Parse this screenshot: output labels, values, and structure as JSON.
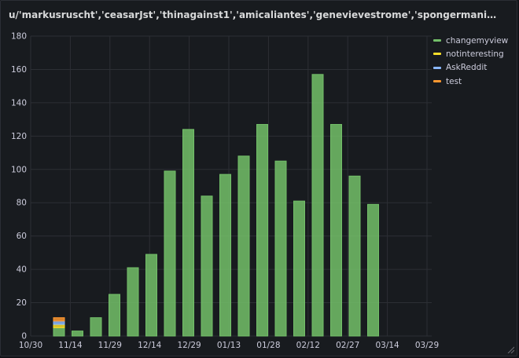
{
  "panel": {
    "title": "u/'markusruscht','ceasarJst','thinagainst1','amicaliantes','genevievestrome','spongermaniak','flippitjiBBer','oriola..."
  },
  "chart_data": {
    "type": "bar",
    "stacked": true,
    "categories": [
      "11/07",
      "11/14",
      "11/21",
      "11/28",
      "12/05",
      "12/12",
      "12/19",
      "12/26",
      "01/02",
      "01/09",
      "01/16",
      "01/23",
      "01/30",
      "02/06",
      "02/13",
      "02/20",
      "02/27",
      "03/06"
    ],
    "series": [
      {
        "name": "changemyview",
        "color": "#73bf69",
        "values": [
          5,
          3,
          11,
          25,
          41,
          49,
          99,
          124,
          84,
          97,
          108,
          127,
          105,
          81,
          157,
          127,
          96,
          79
        ]
      },
      {
        "name": "notinteresting",
        "color": "#fade2a",
        "values": [
          2,
          0,
          0,
          0,
          0,
          0,
          0,
          0,
          0,
          0,
          0,
          0,
          0,
          0,
          0,
          0,
          0,
          0
        ]
      },
      {
        "name": "AskReddit",
        "color": "#8ab8ff",
        "values": [
          2,
          0,
          0,
          0,
          0,
          0,
          0,
          0,
          0,
          0,
          0,
          0,
          0,
          0,
          0,
          0,
          0,
          0
        ]
      },
      {
        "name": "test",
        "color": "#ff9830",
        "values": [
          2,
          0,
          0,
          0,
          0,
          0,
          0,
          0,
          0,
          0,
          0,
          0,
          0,
          0,
          0,
          0,
          0,
          0
        ]
      }
    ],
    "x_ticks": [
      "10/30",
      "11/14",
      "11/29",
      "12/14",
      "12/29",
      "01/13",
      "01/28",
      "02/12",
      "02/27",
      "03/14",
      "03/29"
    ],
    "y_ticks": [
      0,
      20,
      40,
      60,
      80,
      100,
      120,
      140,
      160,
      180
    ],
    "ylim": [
      0,
      180
    ],
    "grid": true,
    "legend_position": "right"
  }
}
